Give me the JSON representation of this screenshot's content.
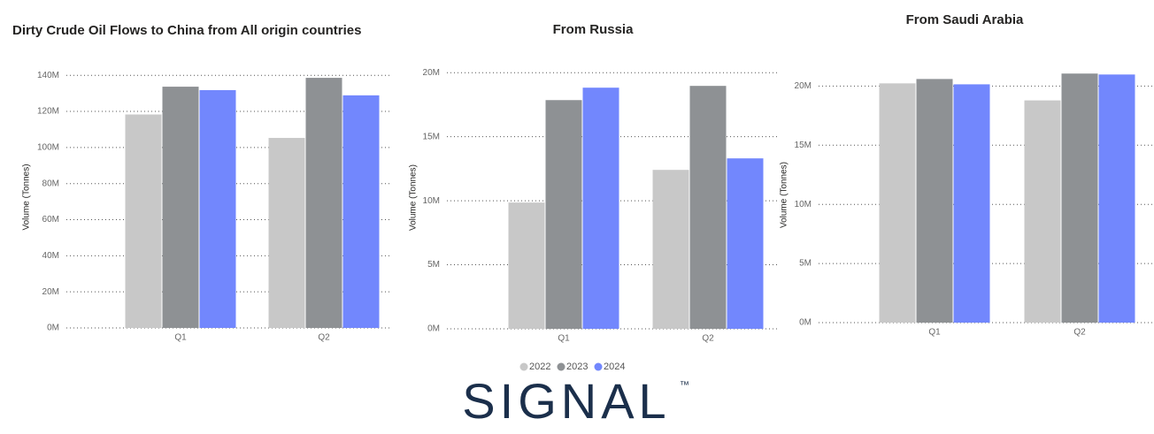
{
  "chart_data": [
    {
      "type": "bar",
      "title": "Dirty Crude Oil Flows to China from All origin countries",
      "y_label": "Volume (Tonnes)",
      "categories": [
        "Q1",
        "Q2"
      ],
      "series": [
        {
          "name": "2022",
          "color": "#c8c8c8",
          "values": [
            118300000,
            105300000
          ]
        },
        {
          "name": "2023",
          "color": "#8e9194",
          "values": [
            133700000,
            138600000
          ]
        },
        {
          "name": "2024",
          "color": "#7287fd",
          "values": [
            131800000,
            128900000
          ]
        }
      ],
      "ylim": [
        0,
        145000000
      ],
      "yticks": [
        {
          "value": 0,
          "label": "0M"
        },
        {
          "value": 20000000,
          "label": "20M"
        },
        {
          "value": 40000000,
          "label": "40M"
        },
        {
          "value": 60000000,
          "label": "60M"
        },
        {
          "value": 80000000,
          "label": "80M"
        },
        {
          "value": 100000000,
          "label": "100M"
        },
        {
          "value": 120000000,
          "label": "120M"
        },
        {
          "value": 140000000,
          "label": "140M"
        }
      ],
      "grid": true
    },
    {
      "type": "bar",
      "title": "From Russia",
      "y_label": "Volume (Tonnes)",
      "categories": [
        "Q1",
        "Q2"
      ],
      "series": [
        {
          "color": "#c8c8c8",
          "values": [
            9860000,
            12410000
          ]
        },
        {
          "color": "#8e9194",
          "values": [
            17860000,
            18970000
          ]
        },
        {
          "color": "#7287fd",
          "values": [
            18830000,
            13310000
          ]
        }
      ],
      "ylim": [
        0,
        20500000
      ],
      "yticks": [
        {
          "value": 0,
          "label": "0M"
        },
        {
          "value": 5000000,
          "label": "5M"
        },
        {
          "value": 10000000,
          "label": "10M"
        },
        {
          "value": 15000000,
          "label": "15M"
        },
        {
          "value": 20000000,
          "label": "20M"
        }
      ],
      "grid": true
    },
    {
      "type": "bar",
      "title": "From Saudi Arabia",
      "y_label": "Volume (Tonnes)",
      "categories": [
        "Q1",
        "Q2"
      ],
      "series": [
        {
          "color": "#c8c8c8",
          "values": [
            20230000,
            18790000
          ]
        },
        {
          "color": "#8e9194",
          "values": [
            20600000,
            21060000
          ]
        },
        {
          "color": "#7287fd",
          "values": [
            20150000,
            20980000
          ]
        }
      ],
      "ylim": [
        0,
        21600000
      ],
      "yticks": [
        {
          "value": 0,
          "label": "0M"
        },
        {
          "value": 5000000,
          "label": "5M"
        },
        {
          "value": 10000000,
          "label": "10M"
        },
        {
          "value": 15000000,
          "label": "15M"
        },
        {
          "value": 20000000,
          "label": "20M"
        }
      ],
      "grid": true
    }
  ],
  "logo": {
    "text": "SIGNAL",
    "mark": "™"
  }
}
